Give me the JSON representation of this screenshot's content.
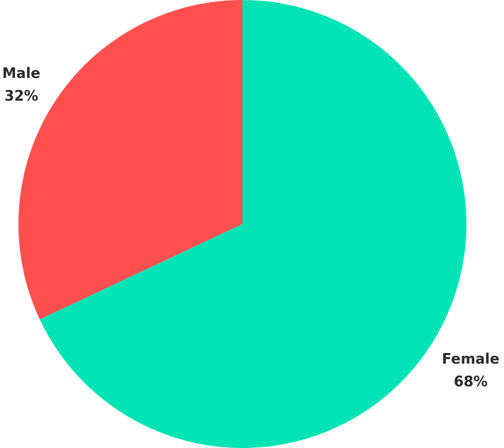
{
  "chart_data": {
    "type": "pie",
    "title": "",
    "slices": [
      {
        "label": "Female",
        "value": 68,
        "display": "68%",
        "color": "#00E3B4"
      },
      {
        "label": "Male",
        "value": 32,
        "display": "32%",
        "color": "#FF5050"
      }
    ],
    "start": "12 o'clock",
    "direction": "clockwise",
    "legend": "none"
  }
}
